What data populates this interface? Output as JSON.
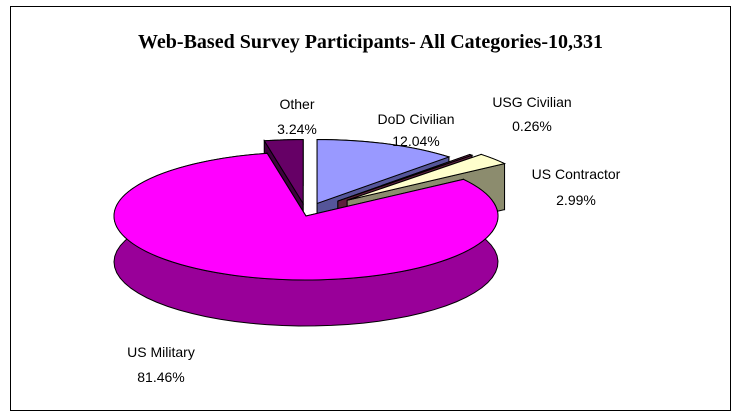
{
  "chart_data": {
    "type": "pie",
    "title": "Web-Based Survey Participants- All Categories-10,331",
    "slices": [
      {
        "label": "DoD Civilian",
        "value": 12.04,
        "value_text": "12.04%",
        "color": "#9999ff",
        "side": "#555599"
      },
      {
        "label": "USG Civilian",
        "value": 0.26,
        "value_text": "0.26%",
        "color": "#993366",
        "side": "#5c1f3d"
      },
      {
        "label": "US Contractor",
        "value": 2.99,
        "value_text": "2.99%",
        "color": "#ffffcc",
        "side": "#8c8c6e"
      },
      {
        "label": "US Military",
        "value": 81.46,
        "value_text": "81.46%",
        "color": "#ff00ff",
        "side": "#990099"
      },
      {
        "label": "Other",
        "value": 3.24,
        "value_text": "3.24%",
        "color": "#660066",
        "side": "#3d003d"
      }
    ],
    "style": "3d-exploded",
    "legend": "none"
  }
}
